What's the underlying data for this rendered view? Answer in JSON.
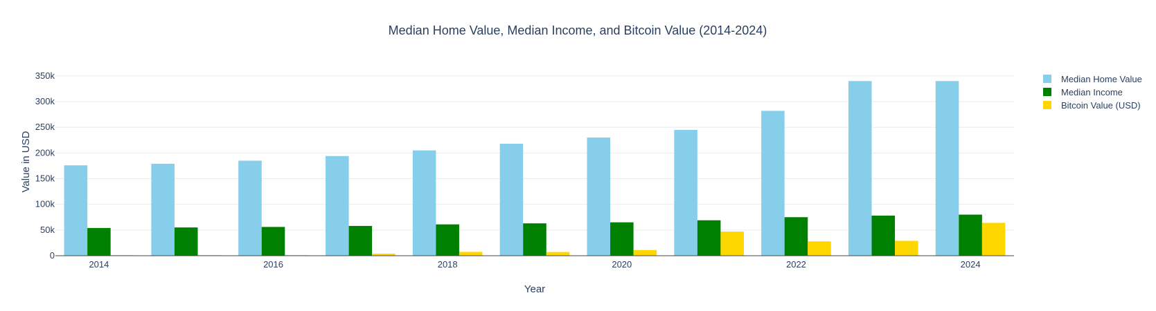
{
  "chart_data": {
    "type": "bar",
    "title": "Median Home Value, Median Income, and Bitcoin Value (2014-2024)",
    "xlabel": "Year",
    "ylabel": "Value in USD",
    "categories": [
      "2014",
      "2015",
      "2016",
      "2017",
      "2018",
      "2019",
      "2020",
      "2021",
      "2022",
      "2023",
      "2024"
    ],
    "x_tick_labels": [
      "2014",
      "2016",
      "2018",
      "2020",
      "2022",
      "2024"
    ],
    "y_ticks": [
      0,
      50000,
      100000,
      150000,
      200000,
      250000,
      300000,
      350000
    ],
    "y_tick_labels": [
      "0",
      "50k",
      "100k",
      "150k",
      "200k",
      "250k",
      "300k",
      "350k"
    ],
    "ylim": [
      0,
      370000
    ],
    "grid": true,
    "legend_position": "top-right",
    "series": [
      {
        "name": "Median Home Value",
        "color": "#87CEEB",
        "values": [
          176000,
          179000,
          185000,
          194000,
          205000,
          218000,
          230000,
          245000,
          282000,
          340000,
          340000
        ]
      },
      {
        "name": "Median Income",
        "color": "#008000",
        "values": [
          54000,
          55000,
          56000,
          58000,
          61000,
          63000,
          65000,
          69000,
          75000,
          78000,
          80000
        ]
      },
      {
        "name": "Bitcoin Value (USD)",
        "color": "#FFD700",
        "values": [
          400,
          300,
          500,
          4000,
          7500,
          7200,
          11000,
          47000,
          28000,
          29000,
          64000
        ]
      }
    ]
  }
}
